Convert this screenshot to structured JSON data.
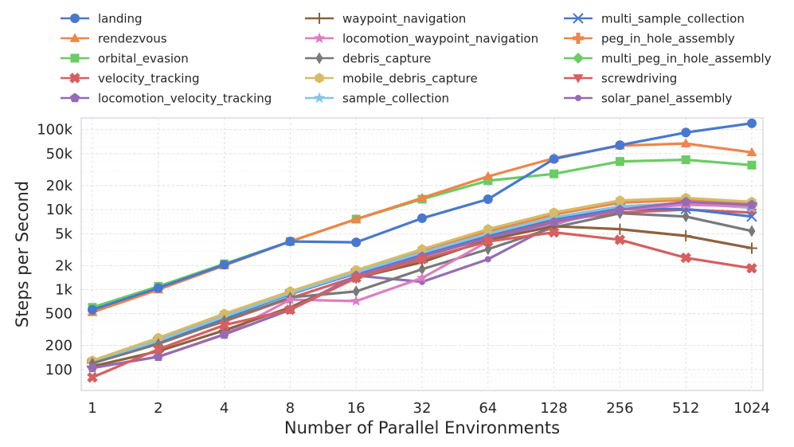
{
  "chart_data": {
    "type": "line",
    "xlabel": "Number of Parallel Environments",
    "ylabel": "Steps per Second",
    "x_scale": "log2",
    "y_scale": "log10",
    "ylim": [
      55,
      140000
    ],
    "grid": true,
    "legend_position": "top",
    "categories": [
      "1",
      "2",
      "4",
      "8",
      "16",
      "32",
      "64",
      "128",
      "256",
      "512",
      "1024"
    ],
    "y_ticks": [
      100,
      200,
      500,
      1000,
      2000,
      5000,
      10000,
      20000,
      50000,
      100000
    ],
    "y_tick_labels": [
      "100",
      "200",
      "500",
      "1k",
      "2k",
      "5k",
      "10k",
      "20k",
      "50k",
      "100k"
    ],
    "series": [
      {
        "name": "landing",
        "color": "#4878d0",
        "marker": "circle",
        "values": [
          560,
          1050,
          2050,
          4000,
          3900,
          7800,
          13500,
          43000,
          64000,
          92000,
          120000
        ]
      },
      {
        "name": "rendezvous",
        "color": "#ee854a",
        "marker": "triangle-up",
        "values": [
          520,
          1000,
          2000,
          4000,
          7600,
          14000,
          26000,
          44000,
          63000,
          67000,
          52000
        ]
      },
      {
        "name": "orbital_evasion",
        "color": "#6acc64",
        "marker": "square",
        "values": [
          600,
          1100,
          2100,
          4000,
          7600,
          13500,
          23000,
          28000,
          40000,
          42000,
          36000
        ]
      },
      {
        "name": "velocity_tracking",
        "color": "#d65f5f",
        "marker": "x-filled",
        "values": [
          80,
          180,
          360,
          560,
          1400,
          2400,
          4000,
          5200,
          4200,
          2500,
          1850
        ]
      },
      {
        "name": "locomotion_velocity_tracking",
        "color": "#956cb4",
        "marker": "pentagon",
        "values": [
          105,
          145,
          275,
          560,
          1500,
          2600,
          4400,
          7000,
          10000,
          12500,
          11500
        ]
      },
      {
        "name": "waypoint_navigation",
        "color": "#8c613c",
        "marker": "plus-thin",
        "values": [
          110,
          170,
          310,
          600,
          1400,
          2200,
          4200,
          6200,
          5700,
          4700,
          3300
        ]
      },
      {
        "name": "locomotion_waypoint_navigation",
        "color": "#dc7ec0",
        "marker": "star",
        "values": [
          105,
          145,
          275,
          750,
          720,
          1400,
          4000,
          6700,
          10000,
          11500,
          11000
        ]
      },
      {
        "name": "debris_capture",
        "color": "#797979",
        "marker": "diamond-thin",
        "values": [
          120,
          210,
          410,
          800,
          950,
          1800,
          3200,
          6000,
          9000,
          8200,
          5400
        ]
      },
      {
        "name": "mobile_debris_capture",
        "color": "#d5bb67",
        "marker": "hexagon",
        "values": [
          130,
          250,
          500,
          950,
          1750,
          3200,
          5700,
          9200,
          13000,
          14000,
          12500
        ]
      },
      {
        "name": "sample_collection",
        "color": "#82c6e2",
        "marker": "star",
        "values": [
          125,
          230,
          460,
          900,
          1650,
          2900,
          5000,
          8000,
          11000,
          12000,
          10500
        ]
      },
      {
        "name": "multi_sample_collection",
        "color": "#4878d0",
        "marker": "x-thin",
        "values": [
          120,
          225,
          440,
          880,
          1600,
          2800,
          4800,
          7700,
          10200,
          10200,
          8200
        ]
      },
      {
        "name": "peg_in_hole_assembly",
        "color": "#ee854a",
        "marker": "plus-filled",
        "values": [
          125,
          240,
          470,
          920,
          1700,
          3000,
          5300,
          8700,
          12200,
          13200,
          11800
        ]
      },
      {
        "name": "multi_peg_in_hole_assembly",
        "color": "#6acc64",
        "marker": "diamond",
        "values": [
          125,
          235,
          460,
          910,
          1700,
          3050,
          5500,
          8900,
          12600,
          13500,
          12300
        ]
      },
      {
        "name": "screwdriving",
        "color": "#d65f5f",
        "marker": "triangle-down",
        "values": [
          120,
          220,
          400,
          780,
          1450,
          2600,
          4500,
          7200,
          9200,
          10000,
          9200
        ]
      },
      {
        "name": "solar_panel_assembly",
        "color": "#956cb4",
        "marker": "small-circle",
        "values": [
          105,
          145,
          275,
          560,
          1500,
          1250,
          2400,
          6500,
          11000,
          12000,
          11500
        ]
      }
    ]
  }
}
